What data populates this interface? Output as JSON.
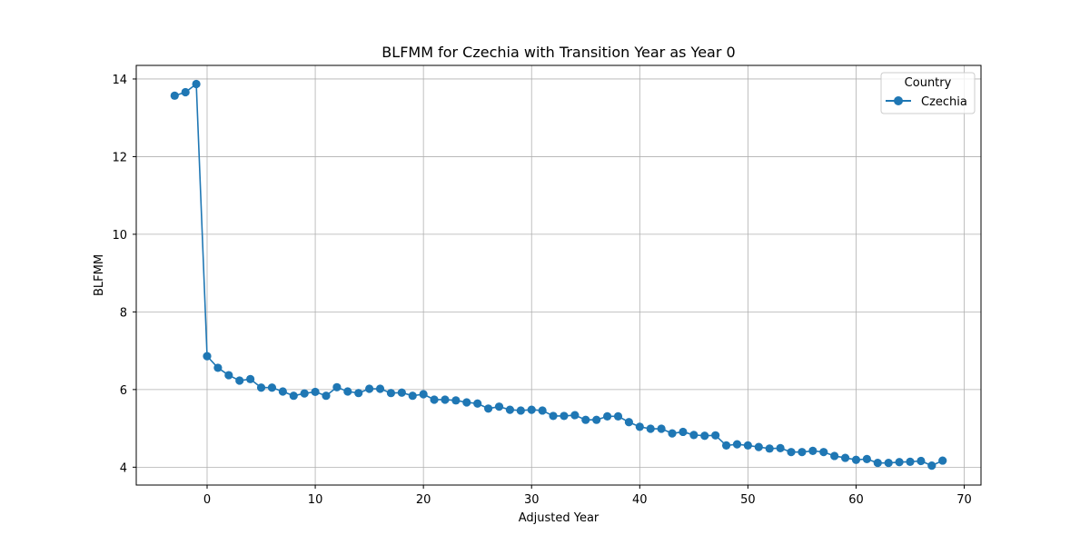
{
  "chart_data": {
    "type": "line",
    "title": "BLFMM for Czechia with Transition Year as Year 0",
    "xlabel": "Adjusted Year",
    "ylabel": "BLFMM",
    "xlim": [
      -6.55,
      71.55
    ],
    "ylim": [
      3.54,
      14.35
    ],
    "xticks": [
      0,
      10,
      20,
      30,
      40,
      50,
      60,
      70
    ],
    "yticks": [
      4,
      6,
      8,
      10,
      12,
      14
    ],
    "grid": true,
    "legend": {
      "title": "Country",
      "placement": "top-right"
    },
    "series": [
      {
        "name": "Czechia",
        "color": "#1f77b4",
        "x": [
          -3,
          -2,
          -1,
          0,
          1,
          2,
          3,
          4,
          5,
          6,
          7,
          8,
          9,
          10,
          11,
          12,
          13,
          14,
          15,
          16,
          17,
          18,
          19,
          20,
          21,
          22,
          23,
          24,
          25,
          26,
          27,
          28,
          29,
          30,
          31,
          32,
          33,
          34,
          35,
          36,
          37,
          38,
          39,
          40,
          41,
          42,
          43,
          44,
          45,
          46,
          47,
          48,
          49,
          50,
          51,
          52,
          53,
          54,
          55,
          56,
          57,
          58,
          59,
          60,
          61,
          62,
          63,
          64,
          65,
          66,
          67,
          68
        ],
        "values": [
          13.57,
          13.66,
          13.87,
          6.86,
          6.56,
          6.37,
          6.23,
          6.27,
          6.05,
          6.05,
          5.95,
          5.84,
          5.9,
          5.94,
          5.84,
          6.06,
          5.95,
          5.91,
          6.02,
          6.02,
          5.91,
          5.92,
          5.84,
          5.88,
          5.74,
          5.74,
          5.72,
          5.67,
          5.64,
          5.51,
          5.56,
          5.48,
          5.46,
          5.48,
          5.46,
          5.32,
          5.32,
          5.34,
          5.22,
          5.22,
          5.31,
          5.31,
          5.16,
          5.04,
          4.99,
          4.99,
          4.87,
          4.91,
          4.83,
          4.81,
          4.82,
          4.56,
          4.59,
          4.56,
          4.52,
          4.48,
          4.49,
          4.39,
          4.39,
          4.42,
          4.39,
          4.29,
          4.24,
          4.19,
          4.21,
          4.11,
          4.11,
          4.13,
          4.14,
          4.16,
          4.04,
          4.17
        ]
      }
    ]
  }
}
